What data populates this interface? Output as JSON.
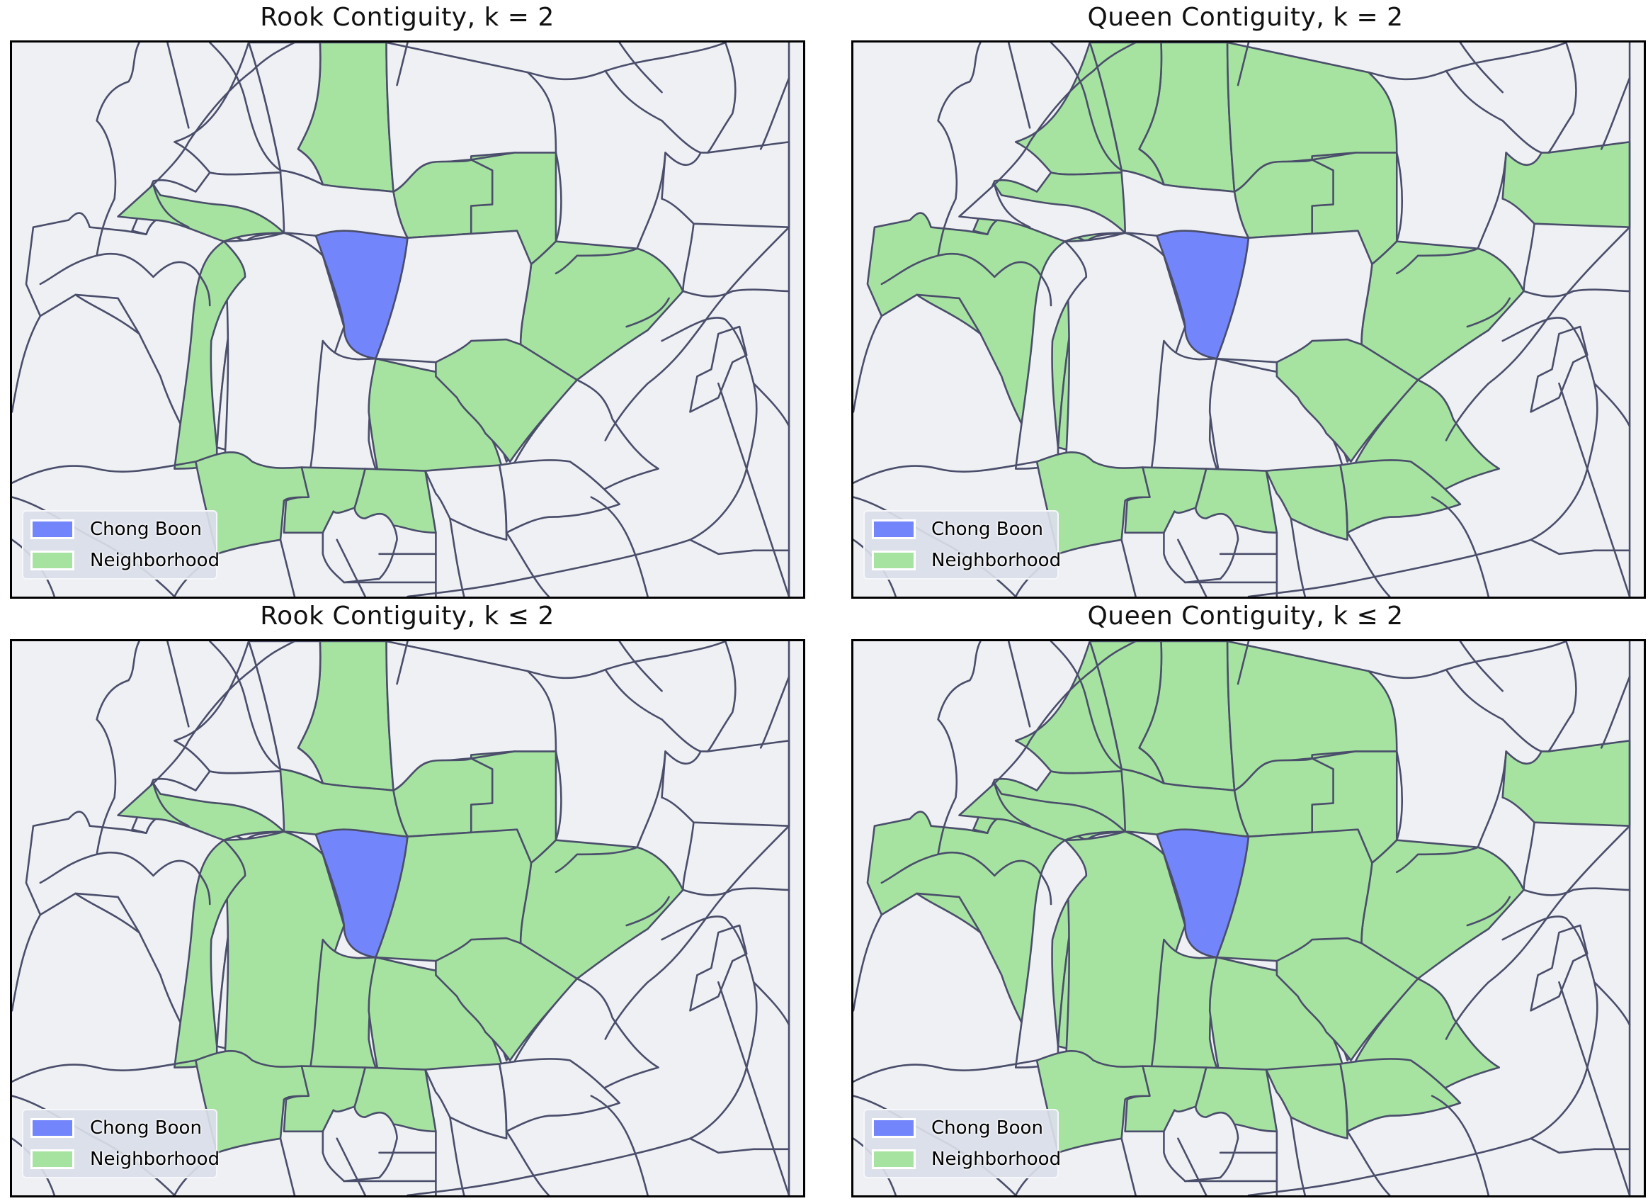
{
  "colors": {
    "target": "#7385fb",
    "neighborhood": "#a6e3a1",
    "background": "#eff0f4",
    "boundary": "#4a4e6a",
    "legend_bg": "#dadee8"
  },
  "legend": {
    "target_label": "Chong Boon",
    "neighbor_label": "Neighborhood"
  },
  "panels": [
    {
      "id": "rook-k2",
      "title": "Rook Contiguity, k = 2"
    },
    {
      "id": "queen-k2",
      "title": "Queen Contiguity, k = 2"
    },
    {
      "id": "rook-kle2",
      "title": "Rook Contiguity, k ≤ 2"
    },
    {
      "id": "queen-kle2",
      "title": "Queen Contiguity, k ≤ 2"
    }
  ],
  "map": {
    "target_region": "chong-boon",
    "highlight": {
      "rook-k2": [
        "n-top",
        "w1",
        "ne1",
        "ne2",
        "e1",
        "sw1",
        "s1",
        "se1",
        "ss1",
        "ss2",
        "ss3"
      ],
      "queen-k2": [
        "n-top",
        "nw1",
        "nw2",
        "ne-top",
        "ne1",
        "ne2",
        "far-ne",
        "w-big",
        "w2",
        "wsw",
        "e1",
        "se1",
        "se2",
        "ss1",
        "ss2",
        "ss3",
        "ss4",
        "ss5"
      ],
      "rook-kle2": [
        "n-top",
        "n1",
        "w1",
        "ne1",
        "ne2",
        "e1",
        "e0",
        "sw1",
        "s0",
        "s1",
        "se0",
        "se1",
        "ss1",
        "ss2",
        "ss3",
        "w0"
      ],
      "queen-kle2": [
        "n-top",
        "n1",
        "nw1",
        "nw2",
        "ne-top",
        "ne1",
        "ne2",
        "far-ne",
        "w-big",
        "w2",
        "wsw",
        "w1",
        "w0",
        "e1",
        "e0",
        "s0",
        "s1",
        "se0",
        "se1",
        "se2",
        "ss1",
        "ss2",
        "ss3",
        "ss4",
        "ss5"
      ]
    }
  }
}
